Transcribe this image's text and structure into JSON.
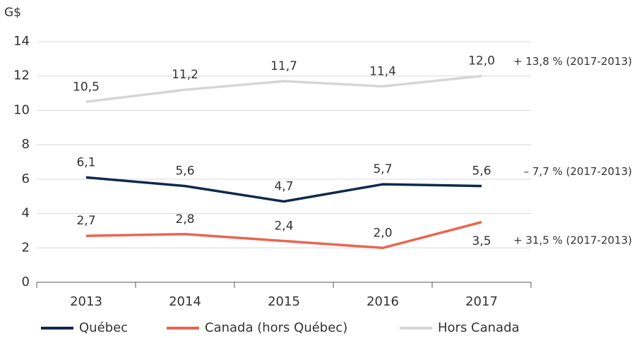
{
  "chart_data": {
    "type": "line",
    "ylabel": "G$",
    "categories": [
      "2013",
      "2014",
      "2015",
      "2016",
      "2017"
    ],
    "series": [
      {
        "name": "Québec",
        "color": "#0f2a4d",
        "values": [
          6.1,
          5.6,
          4.7,
          5.7,
          5.6
        ],
        "value_labels": [
          "6,1",
          "5,6",
          "4,7",
          "5,7",
          "5,6"
        ]
      },
      {
        "name": "Canada (hors Québec)",
        "color": "#e8664f",
        "values": [
          2.7,
          2.8,
          2.4,
          2.0,
          3.5
        ],
        "value_labels": [
          "2,7",
          "2,8",
          "2,4",
          "2,0",
          "3,5"
        ]
      },
      {
        "name": "Hors Canada",
        "color": "#d6d6d6",
        "values": [
          10.5,
          11.2,
          11.7,
          11.4,
          12.0
        ],
        "value_labels": [
          "10,5",
          "11,2",
          "11,7",
          "11,4",
          "12,0"
        ]
      }
    ],
    "annotations": [
      "– 7,7 % (2017-2013)",
      "+ 31,5 % (2017-2013)",
      "+ 13,8 % (2017-2013)"
    ],
    "ylim": [
      0,
      14
    ],
    "yticks": [
      0,
      2,
      4,
      6,
      8,
      10,
      12,
      14
    ],
    "grid": true,
    "legend": "bottom"
  }
}
